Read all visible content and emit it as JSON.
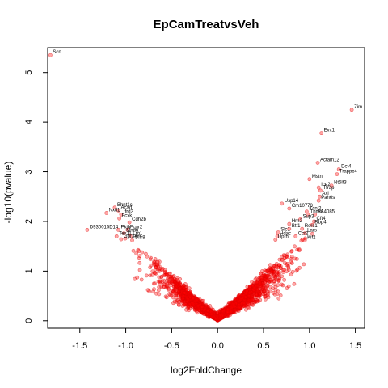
{
  "chart_data": {
    "type": "scatter",
    "title": "EpCamTreatvsVeh",
    "xlabel": "log2FoldChange",
    "ylabel": "-log10(pvalue)",
    "xlim": [
      -1.85,
      1.6
    ],
    "ylim": [
      -0.15,
      5.5
    ],
    "x_ticks": [
      -1.5,
      -1.0,
      -0.5,
      0.0,
      0.5,
      1.0,
      1.5
    ],
    "x_tick_labels": [
      "-1.5",
      "-1.0",
      "-0.5",
      "0.0",
      "0.5",
      "1.0",
      "1.5"
    ],
    "y_ticks": [
      0,
      1,
      2,
      3,
      4,
      5
    ],
    "y_tick_labels": [
      "0",
      "1",
      "2",
      "3",
      "4",
      "5"
    ],
    "point_color": "#ff0000",
    "grid": false,
    "labeled_points": [
      {
        "label": "Scrt",
        "x": -1.82,
        "y": 5.35
      },
      {
        "label": "Zim",
        "x": 1.46,
        "y": 4.25
      },
      {
        "label": "Evx1",
        "x": 1.13,
        "y": 3.78
      },
      {
        "label": "Dct4",
        "x": 1.32,
        "y": 3.05
      },
      {
        "label": "Actam12",
        "x": 1.09,
        "y": 3.18
      },
      {
        "label": "Trappc4",
        "x": 1.3,
        "y": 2.95
      },
      {
        "label": "Mstn",
        "x": 1.0,
        "y": 2.85
      },
      {
        "label": "Nt5lf3",
        "x": 1.24,
        "y": 2.72
      },
      {
        "label": "Ice2",
        "x": 1.1,
        "y": 2.68
      },
      {
        "label": "Tfrap",
        "x": 1.12,
        "y": 2.62
      },
      {
        "label": "Axl",
        "x": 1.11,
        "y": 2.5
      },
      {
        "label": "Pah6s",
        "x": 1.1,
        "y": 2.42
      },
      {
        "label": "Usp14",
        "x": 0.7,
        "y": 2.36
      },
      {
        "label": "Cm10778",
        "x": 0.78,
        "y": 2.26
      },
      {
        "label": "Kcnj2",
        "x": 0.97,
        "y": 2.2
      },
      {
        "label": "Tnmd",
        "x": 0.98,
        "y": 2.14
      },
      {
        "label": "AA4085",
        "x": 1.06,
        "y": 2.14
      },
      {
        "label": "Sup3",
        "x": 0.9,
        "y": 2.04
      },
      {
        "label": "Cft4",
        "x": 1.05,
        "y": 2.0
      },
      {
        "label": "Hrn2",
        "x": 0.78,
        "y": 1.95
      },
      {
        "label": "Rbp4",
        "x": 1.03,
        "y": 1.93
      },
      {
        "label": "Btf1",
        "x": 0.78,
        "y": 1.85
      },
      {
        "label": "Rorc1",
        "x": 0.92,
        "y": 1.85
      },
      {
        "label": "Slc1",
        "x": 0.66,
        "y": 1.78
      },
      {
        "label": "Lars",
        "x": 0.95,
        "y": 1.76
      },
      {
        "label": "Hdac",
        "x": 0.65,
        "y": 1.7
      },
      {
        "label": "Ccr2",
        "x": 0.85,
        "y": 1.7
      },
      {
        "label": "Uprh",
        "x": 0.63,
        "y": 1.63
      },
      {
        "label": "Kif2",
        "x": 0.95,
        "y": 1.62
      },
      {
        "label": "Bhnt1c",
        "x": -1.12,
        "y": 2.28
      },
      {
        "label": "Acad",
        "x": -1.08,
        "y": 2.22
      },
      {
        "label": "Nxtl1",
        "x": -1.21,
        "y": 2.17
      },
      {
        "label": "Ifrd2",
        "x": -1.05,
        "y": 2.14
      },
      {
        "label": "Fcxk",
        "x": -1.07,
        "y": 2.06
      },
      {
        "label": "Cdh2b",
        "x": -0.96,
        "y": 1.98
      },
      {
        "label": "D930015D14",
        "x": -1.42,
        "y": 1.83
      },
      {
        "label": "Pkib",
        "x": -1.08,
        "y": 1.83
      },
      {
        "label": "Fcgr2",
        "x": -0.98,
        "y": 1.83
      },
      {
        "label": "Mnda",
        "x": -1.02,
        "y": 1.76
      },
      {
        "label": "Tex11",
        "x": -1.1,
        "y": 1.7
      },
      {
        "label": "Lrg1",
        "x": -0.95,
        "y": 1.7
      },
      {
        "label": "Gpr34",
        "x": -1.05,
        "y": 1.64
      },
      {
        "label": "Olfr8",
        "x": -0.93,
        "y": 1.62
      }
    ]
  }
}
